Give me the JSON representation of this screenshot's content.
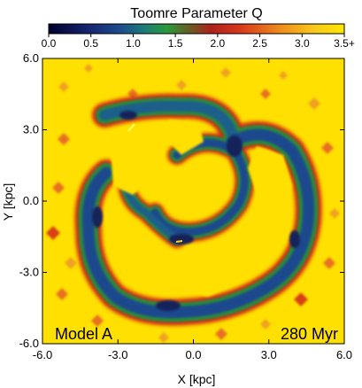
{
  "chart_data": {
    "type": "heatmap",
    "colorbar": {
      "title": "Toomre Parameter Q",
      "ticks": [
        "0.0",
        "0.5",
        "1.0",
        "1.5",
        "2.0",
        "2.5",
        "3.0",
        "3.5+"
      ],
      "range": [
        0,
        3.5
      ],
      "colors": [
        "#000000",
        "#1a1a6e",
        "#1f4d9a",
        "#1c6f6f",
        "#2c8a3a",
        "#8a3a1a",
        "#c0201a",
        "#e0501a",
        "#f09a20",
        "#ffe000"
      ]
    },
    "xlabel": "X [kpc]",
    "ylabel": "Y [kpc]",
    "xlim": [
      -6.0,
      6.0
    ],
    "ylim": [
      -6.0,
      6.0
    ],
    "x_ticks": [
      "-6.0",
      "-3.0",
      "0.0",
      "3.0",
      "6.0"
    ],
    "y_ticks": [
      "6.0",
      "3.0",
      "0.0",
      "-3.0",
      "-6.0"
    ],
    "annotations": {
      "model": "Model A",
      "time": "280 Myr"
    },
    "background_value": 3.5,
    "structure": "low-Q spiral/ring arms embedded in high-Q disk; Q ~ 0.3-1.2 along arms"
  }
}
